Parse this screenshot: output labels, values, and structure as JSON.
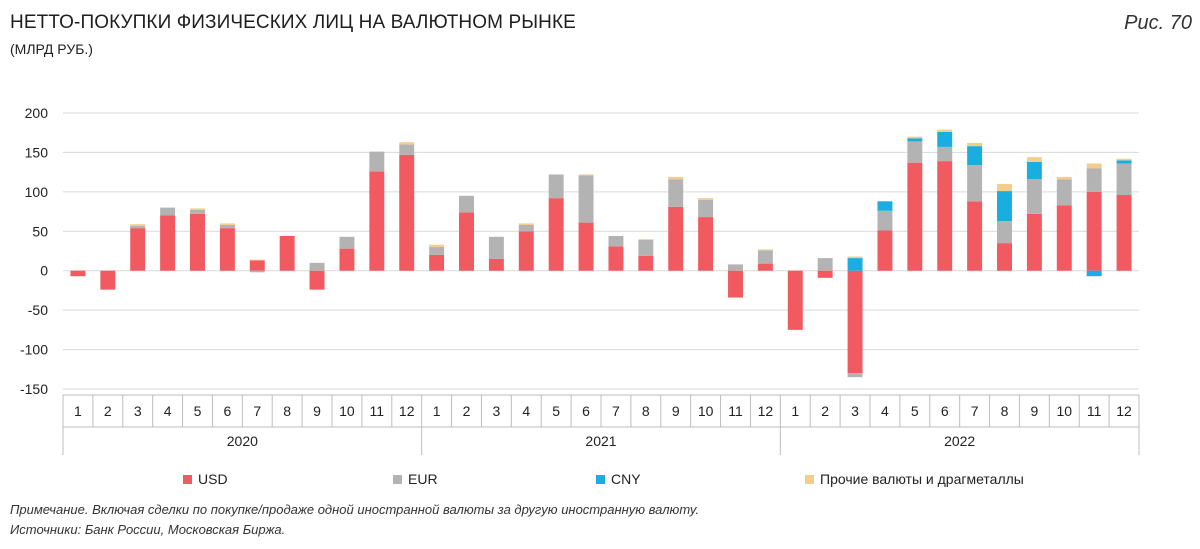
{
  "header": {
    "title": "НЕТТО-ПОКУПКИ ФИЗИЧЕСКИХ ЛИЦ НА ВАЛЮТНОМ РЫНКЕ",
    "subtitle": "(МЛРД РУБ.)",
    "figure_label": "Рис. 70"
  },
  "footer": {
    "note": "Примечание. Включая сделки по покупке/продаже одной иностранной валюты за другую иностранную валюту.",
    "sources": "Источники: Банк России, Московская Биржа."
  },
  "chart_data": {
    "type": "bar",
    "stacked": true,
    "ylim": [
      -150,
      200
    ],
    "yticks": [
      200,
      150,
      100,
      50,
      0,
      -50,
      -100,
      -150
    ],
    "grid": true,
    "legend_position": "bottom",
    "categories": [
      "1",
      "2",
      "3",
      "4",
      "5",
      "6",
      "7",
      "8",
      "9",
      "10",
      "11",
      "12",
      "1",
      "2",
      "3",
      "4",
      "5",
      "6",
      "7",
      "8",
      "9",
      "10",
      "11",
      "12",
      "1",
      "2",
      "3",
      "4",
      "5",
      "6",
      "7",
      "8",
      "9",
      "10",
      "11",
      "12"
    ],
    "groups": [
      {
        "label": "2020",
        "count": 12
      },
      {
        "label": "2021",
        "count": 12
      },
      {
        "label": "2022",
        "count": 12
      }
    ],
    "series": [
      {
        "name": "USD",
        "color": "#f05a60",
        "values": [
          -7,
          -24,
          54,
          70,
          72,
          54,
          13,
          44,
          -24,
          28,
          126,
          147,
          20,
          74,
          15,
          50,
          92,
          61,
          31,
          19,
          81,
          68,
          -34,
          9,
          -75,
          -9,
          -130,
          51,
          137,
          139,
          88,
          35,
          72,
          83,
          100,
          96
        ]
      },
      {
        "name": "EUR",
        "color": "#b3b3b3",
        "values": [
          0,
          0,
          3,
          10,
          5,
          4,
          -2,
          0,
          10,
          15,
          25,
          13,
          10,
          21,
          28,
          8,
          30,
          60,
          13,
          20,
          35,
          22,
          8,
          17,
          0,
          16,
          -5,
          25,
          27,
          18,
          46,
          28,
          44,
          33,
          30,
          40
        ]
      },
      {
        "name": "CNY",
        "color": "#1aaee0",
        "values": [
          0,
          0,
          0,
          0,
          0,
          0,
          0,
          0,
          0,
          0,
          0,
          0,
          0,
          0,
          0,
          0,
          0,
          0,
          0,
          0,
          0,
          0,
          0,
          0,
          0,
          0,
          16,
          12,
          4,
          19,
          24,
          38,
          22,
          0,
          -7,
          4
        ]
      },
      {
        "name": "Прочие валюты и драгметаллы",
        "color": "#f5cd8a",
        "values": [
          0,
          0,
          2,
          0,
          2,
          2,
          1,
          0,
          0,
          0,
          0,
          3,
          3,
          0,
          0,
          2,
          0,
          1,
          0,
          1,
          3,
          2,
          0,
          1,
          0,
          0,
          2,
          0,
          2,
          3,
          4,
          9,
          6,
          3,
          6,
          2
        ]
      }
    ]
  }
}
